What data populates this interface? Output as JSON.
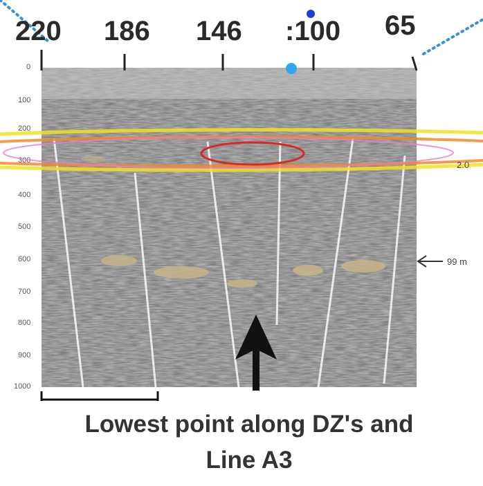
{
  "top_labels": [
    "220",
    "186",
    "146",
    ":100",
    "65"
  ],
  "depth_labels": [
    "0",
    "100",
    "200",
    "300",
    "400",
    "500",
    "600",
    "700",
    "800",
    "900",
    "1000"
  ],
  "right_marker": "99 m",
  "right_mid_label": "2.0",
  "caption_line1": "Lowest point along DZ's and",
  "caption_line2": "Line A3",
  "colors": {
    "seismic_bg": "#b3b3b3",
    "yellow_band": "#f2e021",
    "orange_band": "#f08a2a",
    "red_ellipse": "#d62828",
    "pink_ellipse": "#e87ad0",
    "dotted_line": "#3b8fd6",
    "horizon": "#c8b48a"
  },
  "icons": [
    "up-arrow-icon",
    "left-arrow-icon"
  ]
}
